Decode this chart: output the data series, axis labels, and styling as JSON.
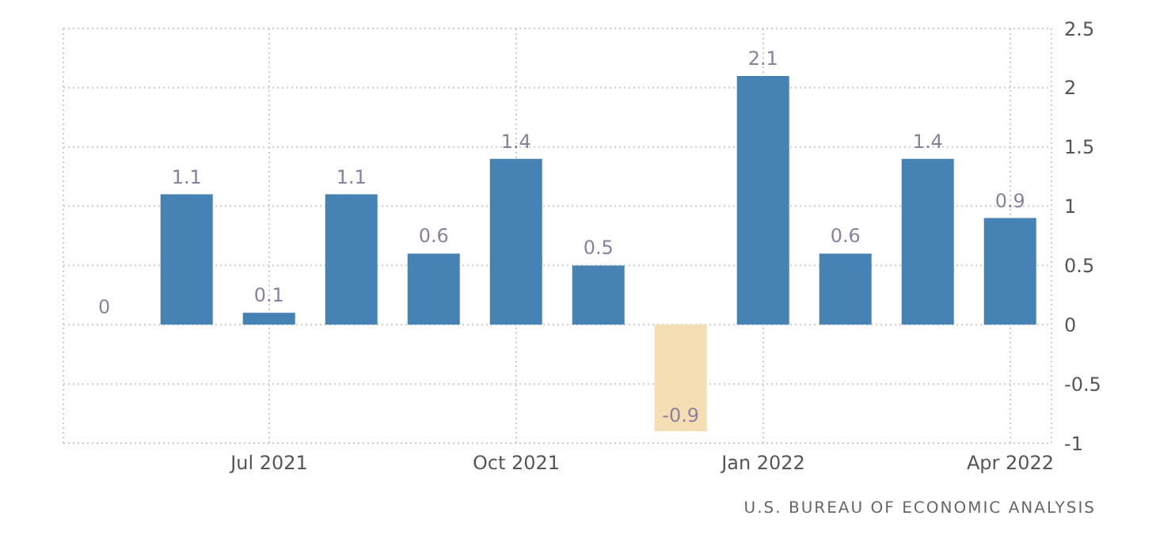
{
  "chart_data": {
    "type": "bar",
    "categories": [
      null,
      null,
      "Jul 2021",
      null,
      null,
      "Oct 2021",
      null,
      null,
      "Jan 2022",
      null,
      null,
      "Apr 2022"
    ],
    "values": [
      0,
      1.1,
      0.1,
      1.1,
      0.6,
      1.4,
      0.5,
      -0.9,
      2.1,
      0.6,
      1.4,
      0.9
    ],
    "colors": [
      "#4682b4",
      "#4682b4",
      "#4682b4",
      "#4682b4",
      "#4682b4",
      "#4682b4",
      "#4682b4",
      "#f5deb3",
      "#4682b4",
      "#4682b4",
      "#4682b4",
      "#4682b4"
    ],
    "ylim": [
      -1,
      2.5
    ],
    "yticks": [
      -1,
      -0.5,
      0,
      0.5,
      1,
      1.5,
      2,
      2.5
    ],
    "grid": true,
    "data_labels": true,
    "annotations": [
      "U.S. BUREAU OF ECONOMIC ANALYSIS"
    ]
  }
}
